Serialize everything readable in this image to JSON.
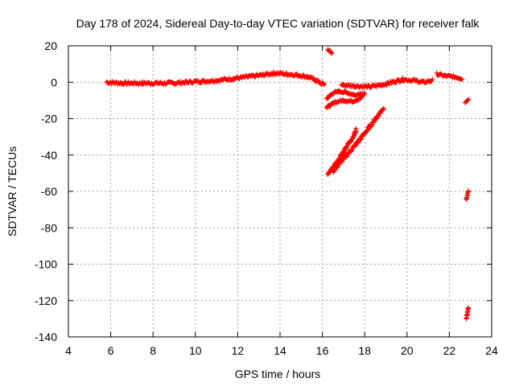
{
  "colors": {
    "series": "#ff0000",
    "grid": "#a0a0a0",
    "axis": "#000000",
    "background": "#ffffff"
  },
  "chart_data": {
    "type": "scatter",
    "title": "Day 178 of 2024, Sidereal Day-to-day VTEC variation (SDTVAR) for receiver falk",
    "xlabel": "GPS time / hours",
    "ylabel": "SDTVAR / TECUs",
    "xlim": [
      4,
      24
    ],
    "ylim": [
      -140,
      20
    ],
    "xticks": [
      4,
      6,
      8,
      10,
      12,
      14,
      16,
      18,
      20,
      22,
      24
    ],
    "yticks": [
      20,
      0,
      -20,
      -40,
      -60,
      -80,
      -100,
      -120,
      -140
    ],
    "grid": true,
    "marker": "plus",
    "series": [
      {
        "name": "SDTVAR",
        "segments": [
          {
            "points": [
              [
                5.8,
                0
              ],
              [
                6.5,
                -0.5
              ],
              [
                7.5,
                -0.5
              ],
              [
                8.3,
                -0.5
              ],
              [
                9.0,
                -0.5
              ],
              [
                9.6,
                0
              ],
              [
                10.3,
                0.5
              ],
              [
                11.0,
                1
              ],
              [
                11.8,
                2
              ],
              [
                12.5,
                3
              ],
              [
                13.2,
                4
              ],
              [
                13.7,
                5
              ],
              [
                14.3,
                4.5
              ],
              [
                14.8,
                4
              ],
              [
                15.3,
                3
              ],
              [
                15.7,
                1
              ],
              [
                16.1,
                -1.5
              ]
            ],
            "spread": 1.6
          },
          {
            "points": [
              [
                16.25,
                18
              ],
              [
                16.45,
                16
              ]
            ],
            "spread": 0.8
          },
          {
            "points": [
              [
                16.2,
                -9
              ],
              [
                16.5,
                -6
              ],
              [
                16.8,
                -5
              ],
              [
                17.1,
                -5.5
              ],
              [
                17.5,
                -7
              ],
              [
                17.9,
                -6
              ]
            ],
            "spread": 1.2
          },
          {
            "points": [
              [
                16.2,
                -14
              ],
              [
                16.6,
                -11
              ],
              [
                17.0,
                -10
              ],
              [
                17.4,
                -10.5
              ],
              [
                17.8,
                -9
              ],
              [
                18.0,
                -6
              ]
            ],
            "spread": 1.2
          },
          {
            "points": [
              [
                16.9,
                -1.5
              ],
              [
                17.5,
                -2
              ],
              [
                18.2,
                -2.5
              ],
              [
                18.8,
                -1.5
              ],
              [
                19.3,
                0
              ],
              [
                19.8,
                1.5
              ],
              [
                20.3,
                1
              ],
              [
                20.8,
                0
              ],
              [
                21.2,
                1
              ]
            ],
            "spread": 1.6
          },
          {
            "points": [
              [
                21.4,
                4.5
              ],
              [
                21.8,
                3.5
              ],
              [
                22.2,
                3
              ],
              [
                22.6,
                2
              ]
            ],
            "spread": 1.3
          },
          {
            "points": [
              [
                22.75,
                -11
              ],
              [
                22.9,
                -9.5
              ]
            ],
            "spread": 0.8
          },
          {
            "points": [
              [
                22.8,
                -64
              ],
              [
                22.85,
                -62
              ],
              [
                22.9,
                -60
              ]
            ],
            "spread": 1.2
          },
          {
            "points": [
              [
                22.8,
                -130
              ],
              [
                22.85,
                -127
              ],
              [
                22.9,
                -124
              ]
            ],
            "spread": 1.2
          },
          {
            "points": [
              [
                16.25,
                -51
              ],
              [
                16.7,
                -44
              ],
              [
                17.1,
                -36
              ],
              [
                17.5,
                -29
              ],
              [
                17.6,
                -26
              ]
            ],
            "spread": 2.0
          },
          {
            "points": [
              [
                16.5,
                -49
              ],
              [
                17.0,
                -42
              ],
              [
                17.6,
                -34
              ],
              [
                18.2,
                -25
              ],
              [
                18.9,
                -14
              ]
            ],
            "spread": 2.0
          }
        ]
      }
    ]
  }
}
